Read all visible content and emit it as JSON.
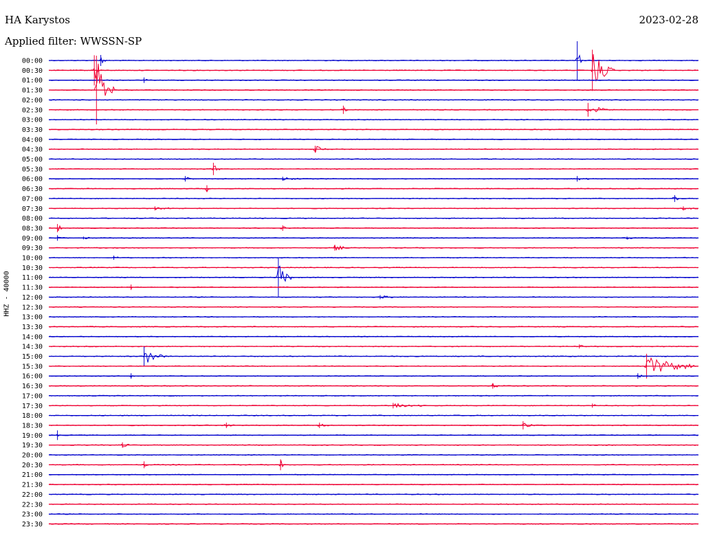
{
  "header": {
    "station": "HA Karystos",
    "date": "2023-02-28",
    "filter": "Applied filter: WWSSN-SP",
    "channel": "HHZ - 40000"
  },
  "colors": {
    "a": "#0000cc",
    "b": "#ee0033"
  },
  "chart_data": {
    "type": "line",
    "title": "HA Karystos",
    "subtitle": "Applied filter: WWSSN-SP",
    "date": "2023-02-28",
    "ylabel": "HHZ - 40000",
    "rows": [
      "00:00",
      "00:30",
      "01:00",
      "01:30",
      "02:00",
      "02:30",
      "03:00",
      "03:30",
      "04:00",
      "04:30",
      "05:00",
      "05:30",
      "06:00",
      "06:30",
      "07:00",
      "07:30",
      "08:00",
      "08:30",
      "09:00",
      "09:30",
      "10:00",
      "10:30",
      "11:00",
      "11:30",
      "12:00",
      "12:30",
      "13:00",
      "13:30",
      "14:00",
      "14:30",
      "15:00",
      "15:30",
      "16:00",
      "16:30",
      "17:00",
      "17:30",
      "18:00",
      "18:30",
      "19:00",
      "19:30",
      "20:00",
      "20:30",
      "21:00",
      "21:30",
      "22:00",
      "22:30",
      "23:00",
      "23:30"
    ],
    "xlim_minutes": [
      0,
      30
    ],
    "events": [
      {
        "row": 0,
        "t": 2.4,
        "amp": 8,
        "dur": 0.3
      },
      {
        "row": 0,
        "t": 24.4,
        "amp": 28,
        "dur": 0.2
      },
      {
        "row": 1,
        "t": 2.1,
        "amp": 22,
        "dur": 0.3
      },
      {
        "row": 1,
        "t": 25.1,
        "amp": 30,
        "dur": 1.0
      },
      {
        "row": 2,
        "t": 4.4,
        "amp": 4,
        "dur": 0.2
      },
      {
        "row": 3,
        "t": 2.2,
        "amp": 50,
        "dur": 0.8
      },
      {
        "row": 5,
        "t": 13.6,
        "amp": 6,
        "dur": 0.2
      },
      {
        "row": 5,
        "t": 24.9,
        "amp": 10,
        "dur": 1.0
      },
      {
        "row": 9,
        "t": 12.3,
        "amp": 5,
        "dur": 0.9
      },
      {
        "row": 11,
        "t": 7.6,
        "amp": 9,
        "dur": 0.4
      },
      {
        "row": 12,
        "t": 6.3,
        "amp": 4,
        "dur": 0.6
      },
      {
        "row": 12,
        "t": 10.8,
        "amp": 3,
        "dur": 0.9
      },
      {
        "row": 12,
        "t": 24.4,
        "amp": 4,
        "dur": 0.6
      },
      {
        "row": 13,
        "t": 7.3,
        "amp": 5,
        "dur": 0.2
      },
      {
        "row": 14,
        "t": 28.9,
        "amp": 5,
        "dur": 0.3
      },
      {
        "row": 15,
        "t": 4.9,
        "amp": 3,
        "dur": 1.2
      },
      {
        "row": 15,
        "t": 29.3,
        "amp": 3,
        "dur": 0.7
      },
      {
        "row": 17,
        "t": 0.4,
        "amp": 6,
        "dur": 0.3
      },
      {
        "row": 17,
        "t": 10.8,
        "amp": 4,
        "dur": 0.3
      },
      {
        "row": 18,
        "t": 0.4,
        "amp": 4,
        "dur": 0.6
      },
      {
        "row": 18,
        "t": 1.6,
        "amp": 2,
        "dur": 0.6
      },
      {
        "row": 18,
        "t": 26.7,
        "amp": 2,
        "dur": 0.6
      },
      {
        "row": 19,
        "t": 13.2,
        "amp": 4,
        "dur": 0.8
      },
      {
        "row": 20,
        "t": 3.0,
        "amp": 3,
        "dur": 0.3
      },
      {
        "row": 22,
        "t": 10.6,
        "amp": 28,
        "dur": 0.6
      },
      {
        "row": 23,
        "t": 3.8,
        "amp": 4,
        "dur": 0.2
      },
      {
        "row": 24,
        "t": 15.3,
        "amp": 3,
        "dur": 0.8
      },
      {
        "row": 29,
        "t": 24.5,
        "amp": 3,
        "dur": 0.5
      },
      {
        "row": 30,
        "t": 4.4,
        "amp": 14,
        "dur": 1.0
      },
      {
        "row": 31,
        "t": 27.6,
        "amp": 18,
        "dur": 2.2
      },
      {
        "row": 32,
        "t": 3.8,
        "amp": 4,
        "dur": 0.2
      },
      {
        "row": 32,
        "t": 27.2,
        "amp": 4,
        "dur": 0.4
      },
      {
        "row": 33,
        "t": 20.5,
        "amp": 4,
        "dur": 0.6
      },
      {
        "row": 35,
        "t": 15.9,
        "amp": 4,
        "dur": 1.4
      },
      {
        "row": 35,
        "t": 25.1,
        "amp": 3,
        "dur": 0.2
      },
      {
        "row": 37,
        "t": 8.2,
        "amp": 4,
        "dur": 0.6
      },
      {
        "row": 37,
        "t": 12.5,
        "amp": 4,
        "dur": 0.6
      },
      {
        "row": 37,
        "t": 21.9,
        "amp": 6,
        "dur": 0.7
      },
      {
        "row": 38,
        "t": 0.4,
        "amp": 7,
        "dur": 0.2
      },
      {
        "row": 39,
        "t": 3.4,
        "amp": 4,
        "dur": 0.4
      },
      {
        "row": 41,
        "t": 4.4,
        "amp": 5,
        "dur": 0.2
      },
      {
        "row": 41,
        "t": 10.7,
        "amp": 8,
        "dur": 0.2
      }
    ]
  }
}
